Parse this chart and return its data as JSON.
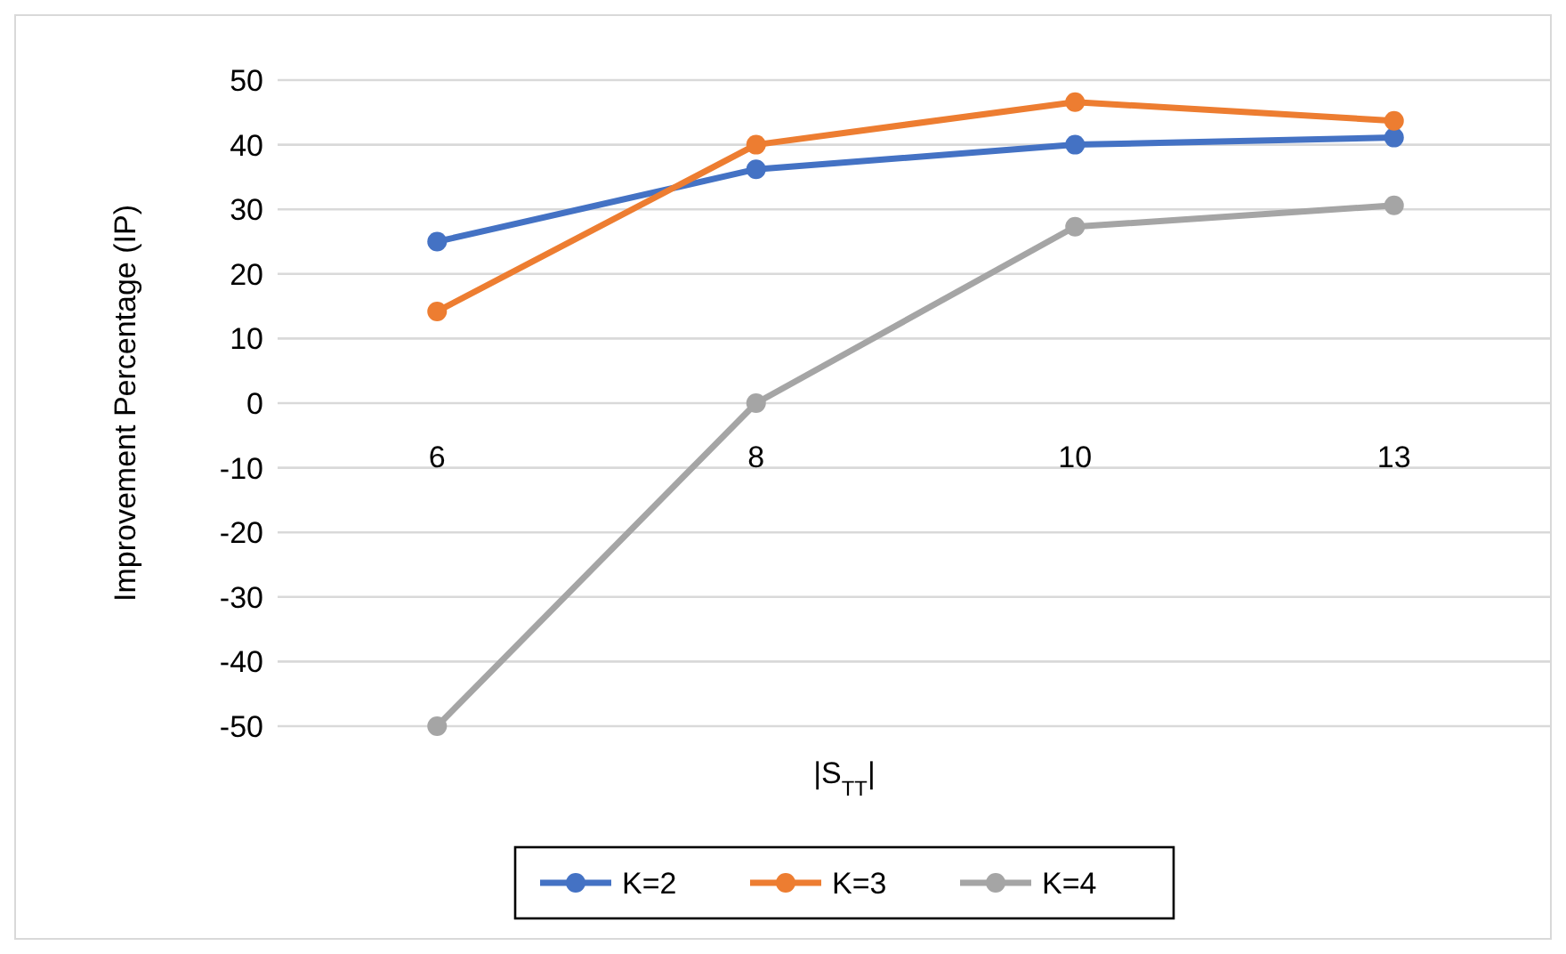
{
  "chart_data": {
    "type": "line",
    "xlabel": "|S$_{TT}$|",
    "ylabel": "Improvement Percentage (IP)",
    "categories": [
      "6",
      "8",
      "10",
      "13"
    ],
    "series": [
      {
        "name": "K=2",
        "color": "#4472c4",
        "values": [
          25,
          36.2,
          40,
          41.1
        ]
      },
      {
        "name": "K=3",
        "color": "#ed7d31",
        "values": [
          14.2,
          40,
          46.6,
          43.7
        ]
      },
      {
        "name": "K=4",
        "color": "#a5a5a5",
        "values": [
          -50,
          0,
          27.3,
          30.6
        ]
      }
    ],
    "ylim": [
      -50,
      50
    ],
    "yticks": [
      -50,
      -40,
      -30,
      -20,
      -10,
      0,
      10,
      20,
      30,
      40,
      50
    ],
    "grid": "y",
    "legend": "bottom",
    "marker": "circle",
    "line_style": "solid"
  }
}
